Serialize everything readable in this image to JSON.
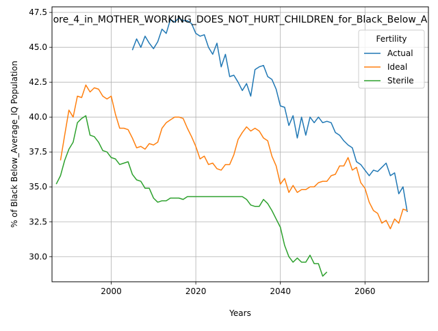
{
  "chart_data": {
    "type": "line",
    "title": "ore_4_in_MOTHER_WORKING_DOES_NOT_HURT_CHILDREN_for_Black_Below_A",
    "xlabel": "Years",
    "ylabel": "% of Black Below_Average_IQ Population",
    "xlim": [
      1986,
      2075
    ],
    "ylim": [
      28.2,
      47.9
    ],
    "x_ticks": [
      2000,
      2020,
      2040,
      2060
    ],
    "y_ticks": [
      30.0,
      32.5,
      35.0,
      37.5,
      40.0,
      42.5,
      45.0,
      47.5
    ],
    "grid": true,
    "legend": {
      "title": "Fertility",
      "placement": "top-right"
    },
    "series": [
      {
        "name": "Actual",
        "color": "#1f77b4",
        "x": [
          2005,
          2006,
          2007,
          2008,
          2009,
          2010,
          2011,
          2012,
          2013,
          2014,
          2015,
          2016,
          2017,
          2018,
          2019,
          2020,
          2021,
          2022,
          2023,
          2024,
          2025,
          2026,
          2027,
          2028,
          2029,
          2030,
          2031,
          2032,
          2033,
          2034,
          2035,
          2036,
          2037,
          2038,
          2039,
          2040,
          2041,
          2042,
          2043,
          2044,
          2045,
          2046,
          2047,
          2048,
          2049,
          2050,
          2051,
          2052,
          2053,
          2054,
          2055,
          2056,
          2057,
          2058,
          2059,
          2060,
          2061,
          2062,
          2063,
          2064,
          2065,
          2066,
          2067,
          2068,
          2069,
          2070
        ],
        "y": [
          44.8,
          45.6,
          45.0,
          45.8,
          45.3,
          44.9,
          45.4,
          46.3,
          46.0,
          47.0,
          46.8,
          47.1,
          46.9,
          46.9,
          46.7,
          46.0,
          45.8,
          45.9,
          45.0,
          44.5,
          45.3,
          43.6,
          44.5,
          42.9,
          43.0,
          42.5,
          41.9,
          42.4,
          41.5,
          43.4,
          43.6,
          43.7,
          42.9,
          42.7,
          42.0,
          40.8,
          40.7,
          39.4,
          40.1,
          38.5,
          40.0,
          38.7,
          40.0,
          39.6,
          40.0,
          39.6,
          39.7,
          39.6,
          38.9,
          38.7,
          38.3,
          38.0,
          37.8,
          36.8,
          36.6,
          36.2,
          35.8,
          36.2,
          36.1,
          36.4,
          36.7,
          35.8,
          36.0,
          34.5,
          35.0,
          33.2
        ]
      },
      {
        "name": "Ideal",
        "color": "#ff7f0e",
        "x": [
          1988,
          1989,
          1990,
          1991,
          1992,
          1993,
          1994,
          1995,
          1996,
          1997,
          1998,
          1999,
          2000,
          2001,
          2002,
          2003,
          2004,
          2005,
          2006,
          2007,
          2008,
          2009,
          2010,
          2011,
          2012,
          2013,
          2014,
          2015,
          2016,
          2017,
          2018,
          2019,
          2020,
          2021,
          2022,
          2023,
          2024,
          2025,
          2026,
          2027,
          2028,
          2029,
          2030,
          2031,
          2032,
          2033,
          2034,
          2035,
          2036,
          2037,
          2038,
          2039,
          2040,
          2041,
          2042,
          2043,
          2044,
          2045,
          2046,
          2047,
          2048,
          2049,
          2050,
          2051,
          2052,
          2053,
          2054,
          2055,
          2056,
          2057,
          2058,
          2059,
          2060,
          2061,
          2062,
          2063,
          2064,
          2065,
          2066,
          2067,
          2068,
          2069,
          2070
        ],
        "y": [
          36.9,
          38.7,
          40.5,
          40.0,
          41.5,
          41.4,
          42.3,
          41.8,
          42.1,
          42.0,
          41.5,
          41.3,
          41.5,
          40.2,
          39.2,
          39.2,
          39.1,
          38.5,
          37.8,
          37.9,
          37.7,
          38.1,
          38.0,
          38.2,
          39.2,
          39.6,
          39.8,
          40.0,
          40.0,
          39.9,
          39.2,
          38.6,
          37.9,
          37.0,
          37.2,
          36.6,
          36.7,
          36.3,
          36.2,
          36.6,
          36.6,
          37.3,
          38.4,
          38.9,
          39.3,
          39.0,
          39.2,
          39.0,
          38.5,
          38.3,
          37.2,
          36.5,
          35.2,
          35.6,
          34.6,
          35.1,
          34.6,
          34.8,
          34.8,
          35.0,
          35.0,
          35.3,
          35.4,
          35.4,
          35.8,
          35.9,
          36.5,
          36.5,
          37.1,
          36.2,
          36.4,
          35.3,
          34.9,
          33.9,
          33.3,
          33.1,
          32.4,
          32.6,
          32.0,
          32.7,
          32.4,
          33.4,
          33.3
        ]
      },
      {
        "name": "Sterile",
        "color": "#2ca02c",
        "x": [
          1987,
          1988,
          1989,
          1990,
          1991,
          1992,
          1993,
          1994,
          1995,
          1996,
          1997,
          1998,
          1999,
          2000,
          2001,
          2002,
          2003,
          2004,
          2005,
          2006,
          2007,
          2008,
          2009,
          2010,
          2011,
          2012,
          2013,
          2014,
          2015,
          2016,
          2017,
          2018,
          2019,
          2020,
          2021,
          2022,
          2023,
          2024,
          2025,
          2026,
          2027,
          2028,
          2029,
          2030,
          2031,
          2032,
          2033,
          2034,
          2035,
          2036,
          2037,
          2038,
          2039,
          2040,
          2041,
          2042,
          2043,
          2044,
          2045,
          2046,
          2047,
          2048,
          2049,
          2050,
          2051
        ],
        "y": [
          35.2,
          35.8,
          36.9,
          37.7,
          38.2,
          39.6,
          39.9,
          40.1,
          38.7,
          38.6,
          38.2,
          37.6,
          37.5,
          37.1,
          37.0,
          36.6,
          36.7,
          36.8,
          35.9,
          35.5,
          35.4,
          34.9,
          34.9,
          34.2,
          33.9,
          34.0,
          34.0,
          34.2,
          34.2,
          34.2,
          34.1,
          34.3,
          34.3,
          34.3,
          34.3,
          34.3,
          34.3,
          34.3,
          34.3,
          34.3,
          34.3,
          34.3,
          34.3,
          34.3,
          34.3,
          34.1,
          33.7,
          33.6,
          33.6,
          34.1,
          33.8,
          33.3,
          32.7,
          32.1,
          30.8,
          30.0,
          29.6,
          29.9,
          29.6,
          29.6,
          30.1,
          29.5,
          29.5,
          28.6,
          28.9
        ]
      }
    ]
  }
}
